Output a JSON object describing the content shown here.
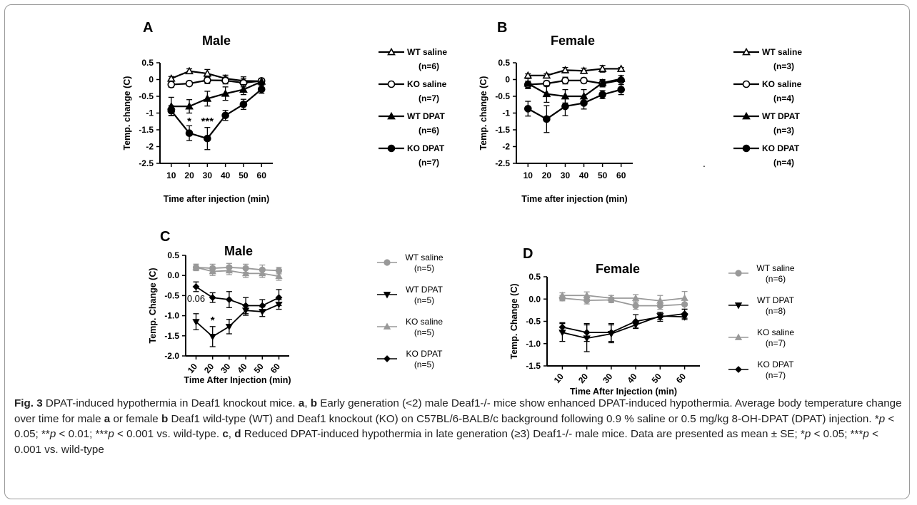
{
  "chart_data": [
    {
      "type": "line",
      "panel": "A",
      "title": "Male",
      "xlabel": "Time after injection (min)",
      "ylabel": "Temp. change (C)",
      "x": [
        10,
        20,
        30,
        40,
        50,
        60
      ],
      "ylim": [
        -2.5,
        0.5
      ],
      "yticks": [
        "0.5",
        "0",
        "-0.5",
        "-1",
        "-1.5",
        "-2",
        "-2.5"
      ],
      "legend_position": "right",
      "annotations": [
        {
          "x": 20,
          "y": -1.35,
          "text": "*"
        },
        {
          "x": 30,
          "y": -1.35,
          "text": "***"
        }
      ],
      "series": [
        {
          "name": "WT saline",
          "n": "(n=6)",
          "marker": "triangle-open",
          "color": "#000000",
          "values": [
            0.03,
            0.25,
            0.18,
            0.03,
            -0.04,
            -0.05
          ],
          "err": [
            0.06,
            0.07,
            0.12,
            0.1,
            0.12,
            0.06
          ]
        },
        {
          "name": "KO saline",
          "n": "(n=7)",
          "marker": "circle-open",
          "color": "#000000",
          "values": [
            -0.15,
            -0.12,
            -0.02,
            -0.03,
            -0.1,
            -0.04
          ],
          "err": [
            0.08,
            0.07,
            0.1,
            0.1,
            0.12,
            0.06
          ]
        },
        {
          "name": "WT DPAT",
          "n": "(n=6)",
          "marker": "triangle-filled",
          "color": "#000000",
          "values": [
            -0.8,
            -0.8,
            -0.57,
            -0.42,
            -0.3,
            -0.06
          ],
          "err": [
            0.27,
            0.2,
            0.22,
            0.2,
            0.15,
            0.1
          ]
        },
        {
          "name": "KO DPAT",
          "n": "(n=7)",
          "marker": "circle-filled",
          "color": "#000000",
          "values": [
            -0.93,
            -1.6,
            -1.76,
            -1.07,
            -0.74,
            -0.29
          ],
          "err": [
            0.15,
            0.22,
            0.33,
            0.15,
            0.15,
            0.12
          ]
        }
      ]
    },
    {
      "type": "line",
      "panel": "B",
      "title": "Female",
      "xlabel": "Time after injection (min)",
      "ylabel": "Temp. change (C)",
      "x": [
        10,
        20,
        30,
        40,
        50,
        60
      ],
      "ylim": [
        -2.5,
        0.5
      ],
      "yticks": [
        "0.5",
        "0",
        "-0.5",
        "-1",
        "-1.5",
        "-2",
        "-2.5"
      ],
      "legend_position": "right",
      "extra_text": ".",
      "series": [
        {
          "name": "WT saline",
          "n": "(n=3)",
          "marker": "triangle-open",
          "color": "#000000",
          "values": [
            0.12,
            0.12,
            0.28,
            0.26,
            0.32,
            0.32
          ],
          "err": [
            0.05,
            0.05,
            0.08,
            0.08,
            0.1,
            0.04
          ]
        },
        {
          "name": "KO saline",
          "n": "(n=4)",
          "marker": "circle-open",
          "color": "#000000",
          "values": [
            -0.15,
            -0.12,
            -0.03,
            -0.03,
            -0.12,
            -0.02
          ],
          "err": [
            0.1,
            0.08,
            0.1,
            0.08,
            0.1,
            0.06
          ]
        },
        {
          "name": "WT DPAT",
          "n": "(n=3)",
          "marker": "triangle-filled",
          "color": "#000000",
          "values": [
            -0.12,
            -0.43,
            -0.5,
            -0.5,
            -0.1,
            0.02
          ],
          "err": [
            0.15,
            0.25,
            0.2,
            0.2,
            0.1,
            0.1
          ]
        },
        {
          "name": "KO DPAT",
          "n": "(n=4)",
          "marker": "circle-filled",
          "color": "#000000",
          "values": [
            -0.87,
            -1.18,
            -0.8,
            -0.7,
            -0.45,
            -0.3
          ],
          "err": [
            0.22,
            0.4,
            0.28,
            0.18,
            0.12,
            0.15
          ]
        }
      ]
    },
    {
      "type": "line",
      "panel": "C",
      "title": "Male",
      "xlabel": "Time After Injection (min)",
      "ylabel": "Temp.  Change (C)",
      "x": [
        10,
        20,
        30,
        40,
        50,
        60
      ],
      "ylim": [
        -2.0,
        0.5
      ],
      "yticks": [
        "0.5",
        "0.0",
        "-0.5",
        "-1.0",
        "-1.5",
        "-2.0"
      ],
      "legend_position": "right",
      "annotations": [
        {
          "x": 10,
          "y": -0.65,
          "text": "0.06"
        },
        {
          "x": 20,
          "y": -1.2,
          "text": "*"
        }
      ],
      "series": [
        {
          "name": "WT saline",
          "n": "(n=5)",
          "marker": "circle-filled",
          "color": "#999999",
          "values": [
            0.2,
            0.18,
            0.2,
            0.18,
            0.14,
            0.12
          ],
          "err": [
            0.08,
            0.1,
            0.1,
            0.1,
            0.12,
            0.08
          ]
        },
        {
          "name": "WT DPAT",
          "n": "(n=5)",
          "marker": "triangle-down-filled",
          "color": "#000000",
          "values": [
            -1.15,
            -1.52,
            -1.27,
            -0.87,
            -0.9,
            -0.72
          ],
          "err": [
            0.2,
            0.25,
            0.18,
            0.12,
            0.12,
            0.12
          ]
        },
        {
          "name": "KO saline",
          "n": "(n=5)",
          "marker": "triangle-filled",
          "color": "#999999",
          "values": [
            0.2,
            0.1,
            0.12,
            0.05,
            0.05,
            -0.02
          ],
          "err": [
            0.08,
            0.1,
            0.1,
            0.1,
            0.1,
            0.1
          ]
        },
        {
          "name": "KO DPAT",
          "n": "(n=5)",
          "marker": "diamond-filled",
          "color": "#000000",
          "values": [
            -0.28,
            -0.55,
            -0.6,
            -0.75,
            -0.75,
            -0.55
          ],
          "err": [
            0.12,
            0.12,
            0.2,
            0.2,
            0.15,
            0.2
          ]
        }
      ]
    },
    {
      "type": "line",
      "panel": "D",
      "title": "Female",
      "xlabel": "Time After Injection (min)",
      "ylabel": "Temp.  Change (C)",
      "x": [
        10,
        20,
        30,
        40,
        50,
        60
      ],
      "ylim": [
        -1.5,
        0.5
      ],
      "yticks": [
        "0.5",
        "0.0",
        "-0.5",
        "-1.0",
        "-1.5"
      ],
      "legend_position": "right",
      "series": [
        {
          "name": "WT saline",
          "n": "(n=6)",
          "marker": "circle-filled",
          "color": "#999999",
          "values": [
            0.02,
            -0.03,
            -0.02,
            -0.15,
            -0.15,
            -0.12
          ],
          "err": [
            0.06,
            0.08,
            0.06,
            0.08,
            0.08,
            0.1
          ]
        },
        {
          "name": "WT DPAT",
          "n": "(n=8)",
          "marker": "triangle-down-filled",
          "color": "#000000",
          "values": [
            -0.75,
            -0.88,
            -0.78,
            -0.58,
            -0.38,
            -0.4
          ],
          "err": [
            0.2,
            0.3,
            0.2,
            0.08,
            0.08,
            0.06
          ]
        },
        {
          "name": "KO saline",
          "n": "(n=7)",
          "marker": "triangle-filled",
          "color": "#999999",
          "values": [
            0.08,
            0.08,
            0.02,
            0.02,
            -0.04,
            0.02
          ],
          "err": [
            0.06,
            0.08,
            0.06,
            0.08,
            0.12,
            0.15
          ]
        },
        {
          "name": "KO DPAT",
          "n": "(n=7)",
          "marker": "diamond-filled",
          "color": "#000000",
          "values": [
            -0.63,
            -0.75,
            -0.75,
            -0.5,
            -0.4,
            -0.33
          ],
          "err": [
            0.1,
            0.2,
            0.2,
            0.15,
            0.1,
            0.1
          ]
        }
      ]
    }
  ],
  "caption": {
    "fig_label": "Fig. 3",
    "title": " DPAT-induced hypothermia in Deaf1 knockout mice. ",
    "seg1": "a",
    "seg2": ", ",
    "seg3": "b",
    "seg4": " Early generation (<2) male Deaf1-/- mice show enhanced DPAT-induced hypothermia. Average body temperature change over time for male ",
    "seg5": "a",
    "seg6": " or female ",
    "seg7": "b",
    "seg8": " Deaf1 wild-type (WT) and Deaf1 knockout (KO) on C57BL/6-BALB/c background following 0.9 % saline or 0.5 mg/kg 8-OH-DPAT (DPAT) injection. *",
    "p1": "p",
    "seg9": " < 0.05; **",
    "p2": "p",
    "seg10": " < 0.01; ***",
    "p3": "p",
    "seg11": " < 0.001 vs. wild-type. ",
    "seg12": "c",
    "seg13": ", ",
    "seg14": "d",
    "seg15": " Reduced DPAT-induced hypothermia in late generation (≥3) Deaf1-/- male mice. Data are presented as mean ± SE; *",
    "p4": "p",
    "seg16": " < 0.05; ***",
    "p5": "p",
    "seg17": " < 0.001 vs. wild-type"
  }
}
